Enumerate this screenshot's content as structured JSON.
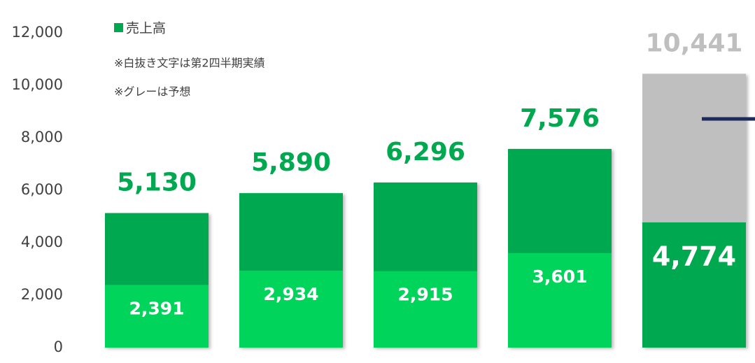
{
  "chart_data": {
    "type": "bar",
    "categories": [
      null,
      null,
      null,
      null,
      null
    ],
    "series": [
      {
        "name": "売上高",
        "color": "#00a84f",
        "colors": [
          "#00a84f",
          "#00a84f",
          "#00a84f",
          "#00a84f",
          "#bfbfbf"
        ],
        "label_colors": [
          "#00a84f",
          "#00a84f",
          "#00a84f",
          "#00a84f",
          "#bfbfbf"
        ],
        "values": [
          5130,
          5890,
          6296,
          7576,
          10441
        ],
        "value_labels": [
          "5,130",
          "5,890",
          "6,296",
          "7,576",
          "10,441"
        ]
      },
      {
        "colors": [
          "#00d45a",
          "#00d45a",
          "#00d45a",
          "#00d45a",
          "#00a84f"
        ],
        "values": [
          2391,
          2934,
          2915,
          3601,
          4774
        ],
        "value_labels": [
          "2,391",
          "2,934",
          "2,915",
          "3,601",
          "4,774"
        ]
      }
    ],
    "annotations": [
      "※白抜き文字は第2四半期実績",
      "※グレーは予想"
    ],
    "line_marker": {
      "value": 8720,
      "color": "#1f2a5c"
    },
    "ylim": [
      0,
      12000
    ],
    "yticks": [
      0,
      {
        "value": 2000,
        "label": "2,000"
      },
      {
        "value": 4000,
        "label": "4,000"
      },
      {
        "value": 6000,
        "label": "6,000"
      },
      {
        "value": 8000,
        "label": "8,000"
      },
      {
        "value": 10000,
        "label": "10,000"
      },
      {
        "value": 12000,
        "label": "12,000"
      }
    ]
  }
}
